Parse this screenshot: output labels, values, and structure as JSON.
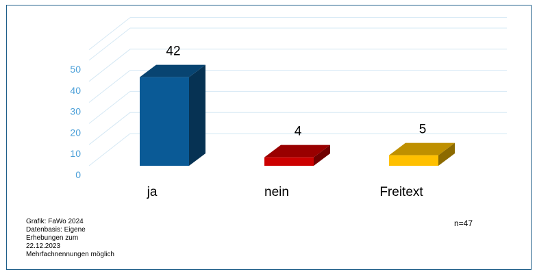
{
  "chart_data": {
    "type": "bar",
    "categories": [
      "ja",
      "nein",
      "Freitext"
    ],
    "values": [
      42,
      4,
      5
    ],
    "colors": [
      "#0a5a96",
      "#cc0000",
      "#ffc000"
    ],
    "yticks": [
      0,
      10,
      20,
      30,
      40,
      50
    ],
    "ylim": [
      0,
      55
    ],
    "grid": true,
    "perspective": "3d"
  },
  "footnote": {
    "lines": [
      "Grafik: FaWo 2024",
      "Datenbasis: Eigene",
      "Erhebungen zum",
      "22.12.2023",
      "Mehrfachnennungen möglich"
    ]
  },
  "sample_size": "n=47"
}
